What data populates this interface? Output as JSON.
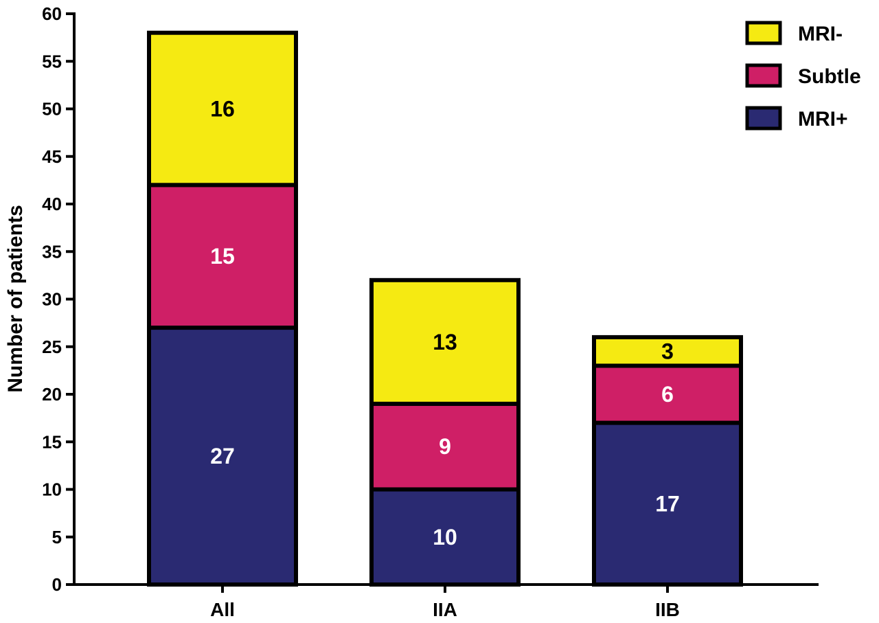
{
  "chart_data": {
    "type": "bar",
    "stacked": true,
    "categories": [
      "All",
      "IIA",
      "IIB"
    ],
    "series": [
      {
        "name": "MRI+",
        "values": [
          27,
          10,
          17
        ],
        "color": "#2a2a72",
        "label_color": "#ffffff"
      },
      {
        "name": "Subtle",
        "values": [
          15,
          9,
          6
        ],
        "color": "#cf1f66",
        "label_color": "#ffffff"
      },
      {
        "name": "MRI-",
        "values": [
          16,
          13,
          3
        ],
        "color": "#f5ea12",
        "label_color": "#000000"
      }
    ],
    "ylabel": "Number of patients",
    "xlabel": "",
    "ylim": [
      0,
      60
    ],
    "yticks": [
      0,
      5,
      10,
      15,
      20,
      25,
      30,
      35,
      40,
      45,
      50,
      55,
      60
    ],
    "legend": {
      "position": "top-right",
      "order": [
        "MRI-",
        "Subtle",
        "MRI+"
      ]
    },
    "grid": false
  }
}
